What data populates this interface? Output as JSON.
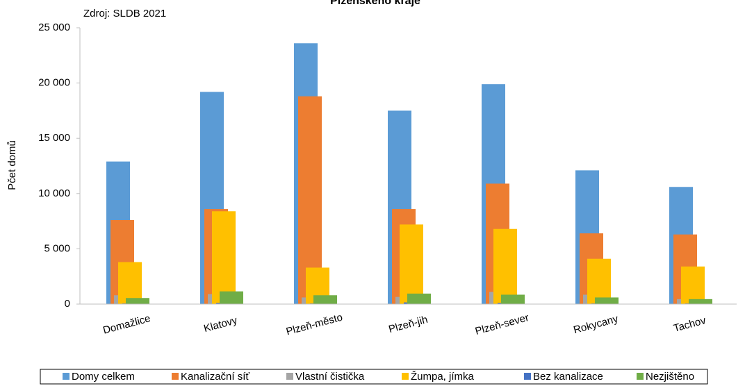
{
  "chart_data": {
    "type": "bar",
    "title": "Plzeňského kraje",
    "subtitle": "Zdroj: SLDB 2021",
    "y_label": "Pčet domů",
    "categories": [
      "Domažlice",
      "Klatovy",
      "Plzeň-město",
      "Plzeň-jih",
      "Plzeň-sever",
      "Rokycany",
      "Tachov"
    ],
    "series": [
      {
        "name": "Domy celkem",
        "color": "#5b9bd5",
        "values": [
          12900,
          19200,
          23600,
          17500,
          19900,
          12100,
          10600
        ]
      },
      {
        "name": "Kanalizační síť",
        "color": "#ed7d31",
        "values": [
          7600,
          8600,
          18800,
          8600,
          10900,
          6400,
          6300
        ]
      },
      {
        "name": "Vlastní čistička",
        "color": "#a5a5a5",
        "values": [
          800,
          900,
          600,
          650,
          1100,
          850,
          450
        ]
      },
      {
        "name": "Žumpa, jímka",
        "color": "#ffc000",
        "values": [
          3800,
          8400,
          3300,
          7200,
          6800,
          4100,
          3400
        ]
      },
      {
        "name": "Bez kanalizace",
        "color": "#4472c4",
        "values": [
          50,
          100,
          50,
          150,
          100,
          50,
          50
        ]
      },
      {
        "name": "Nezjištěno",
        "color": "#70ad47",
        "values": [
          550,
          1150,
          800,
          950,
          850,
          600,
          450
        ]
      }
    ],
    "ylim": [
      0,
      25000
    ],
    "yticks": [
      0,
      {
        "value": 5000,
        "label": "5 000"
      },
      {
        "value": 10000,
        "label": "10 000"
      },
      {
        "value": 15000,
        "label": "15 000"
      },
      {
        "value": 20000,
        "label": "20 000"
      },
      {
        "value": 25000,
        "label": "25 000"
      }
    ],
    "grid": false,
    "legend": "bottom"
  }
}
